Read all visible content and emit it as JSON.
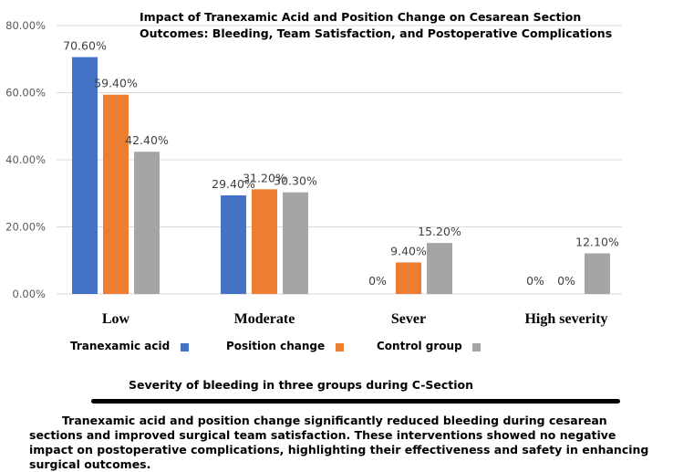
{
  "chart_data": {
    "type": "bar",
    "title": "Impact of Tranexamic Acid and Position Change on Cesarean Section Outcomes: Bleeding, Team Satisfaction, and Postoperative Complications",
    "xlabel": "Severity of bleeding in three groups during C-Section",
    "ylabel": "",
    "categories": [
      "Low",
      "Moderate",
      "Sever",
      "High severity"
    ],
    "series": [
      {
        "name": "Tranexamic acid",
        "color": "#4472C4",
        "values": [
          70.6,
          29.4,
          0,
          0
        ],
        "labels": [
          "70.60%",
          "29.40%",
          "0%",
          "0%"
        ]
      },
      {
        "name": "Position change",
        "color": "#ED7D31",
        "values": [
          59.4,
          31.2,
          9.4,
          0
        ],
        "labels": [
          "59.40%",
          "31.20%",
          "9.40%",
          "0%"
        ]
      },
      {
        "name": "Control group",
        "color": "#A5A5A5",
        "values": [
          42.4,
          30.3,
          15.2,
          12.1
        ],
        "labels": [
          "42.40%",
          "30.30%",
          "15.20%",
          "12.10%"
        ]
      }
    ],
    "yticks": [
      "0.00%",
      "20.00%",
      "40.00%",
      "60.00%",
      "80.00%"
    ],
    "ylim": [
      0,
      80
    ],
    "grid": true,
    "legend_position": "bottom"
  },
  "caption": "Tranexamic acid and position change significantly reduced bleeding during cesarean sections and improved surgical team satisfaction. These interventions showed no negative impact on postoperative complications, highlighting their effectiveness and safety in enhancing surgical outcomes."
}
